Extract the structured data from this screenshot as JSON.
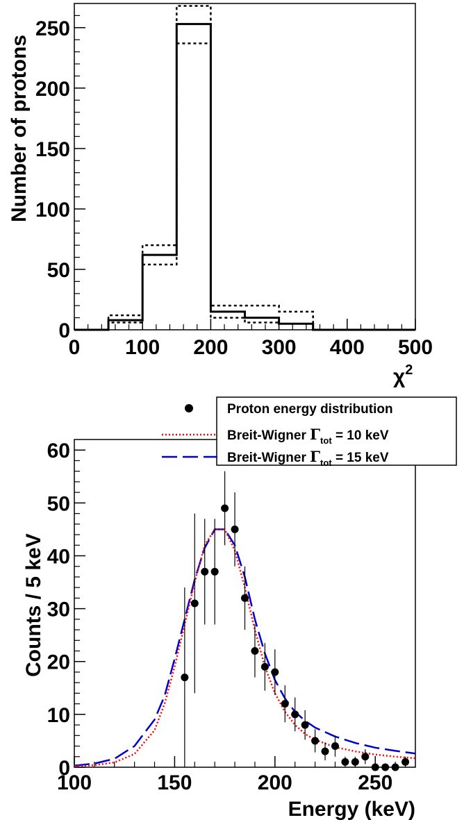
{
  "chart_data": [
    {
      "type": "histogram",
      "xlabel": "χ",
      "xlabel_sup": "2",
      "ylabel": "Number of protons",
      "xlim": [
        0,
        500
      ],
      "ylim": [
        0,
        270
      ],
      "x_ticks": [
        "0",
        "100",
        "200",
        "300",
        "400",
        "500"
      ],
      "y_ticks": [
        "0",
        "50",
        "100",
        "150",
        "200",
        "250"
      ],
      "bin_width": 50,
      "bin_edges": [
        0,
        50,
        100,
        150,
        200,
        250,
        300,
        350,
        400,
        450,
        500
      ],
      "series": [
        {
          "style": "solid",
          "values": [
            0,
            8,
            62,
            253,
            15,
            10,
            5,
            0,
            0,
            0
          ]
        },
        {
          "style": "dotted-upper",
          "values": [
            0,
            12,
            70,
            268,
            20,
            20,
            15,
            0,
            0,
            0
          ]
        },
        {
          "style": "dotted-lower",
          "values": [
            0,
            6,
            54,
            237,
            10,
            6,
            5,
            0,
            0,
            0
          ]
        }
      ]
    },
    {
      "type": "scatter",
      "xlabel": "Energy (keV)",
      "ylabel": "Counts / 5 keV",
      "xlim": [
        100,
        270
      ],
      "ylim": [
        0,
        62
      ],
      "x_ticks": [
        "100",
        "150",
        "200",
        "250"
      ],
      "y_ticks": [
        "0",
        "10",
        "20",
        "30",
        "40",
        "50",
        "60"
      ],
      "legend_position": "top-right",
      "legend": [
        {
          "label": "Proton energy distribution",
          "marker": "dot",
          "color": "#000000"
        },
        {
          "label": "Breit-Wigner",
          "gamma": "Γ",
          "sub": "tot",
          "value": "= 10 keV",
          "style": "dotted",
          "color": "#ff0000"
        },
        {
          "label": "Breit-Wigner",
          "gamma": "Γ",
          "sub": "tot",
          "value": "= 15 keV",
          "style": "dashed",
          "color": "#0000cc"
        }
      ],
      "points": {
        "x": [
          155,
          160,
          165,
          170,
          175,
          180,
          185,
          190,
          195,
          200,
          205,
          210,
          215,
          220,
          225,
          230,
          235,
          240,
          245,
          250,
          255,
          260,
          265
        ],
        "y": [
          17,
          31,
          37,
          37,
          49,
          45,
          32,
          22,
          19,
          18,
          12,
          10,
          8,
          5,
          3,
          4,
          1,
          1,
          2,
          0,
          0,
          0,
          1
        ],
        "err": [
          17,
          17,
          10,
          10,
          7,
          7,
          6,
          5,
          4.5,
          4.3,
          3.5,
          3.2,
          2.8,
          2.2,
          1.7,
          2,
          1,
          1,
          1.4,
          0,
          0,
          0,
          1
        ]
      },
      "curves": [
        {
          "name": "Breit-Wigner 10 keV",
          "color": "#ff0000",
          "style": "dotted",
          "x": [
            100,
            110,
            120,
            130,
            140,
            145,
            150,
            155,
            160,
            165,
            170,
            175,
            180,
            185,
            190,
            195,
            200,
            205,
            210,
            215,
            220,
            230,
            240,
            250,
            260,
            270
          ],
          "y": [
            0.2,
            0.4,
            0.9,
            2.5,
            7,
            12,
            19,
            27,
            35,
            42,
            45,
            45,
            41,
            34,
            26,
            19,
            14,
            10.5,
            8,
            6.3,
            5.2,
            3.8,
            3,
            2.4,
            2,
            1.7
          ]
        },
        {
          "name": "Breit-Wigner 15 keV",
          "color": "#0000cc",
          "style": "dashed",
          "x": [
            100,
            110,
            120,
            130,
            140,
            145,
            150,
            155,
            160,
            165,
            170,
            175,
            180,
            185,
            190,
            195,
            200,
            205,
            210,
            215,
            220,
            230,
            240,
            250,
            260,
            270
          ],
          "y": [
            0.3,
            0.7,
            1.6,
            4,
            9,
            13.5,
            20.5,
            28,
            35.5,
            41.5,
            45,
            45,
            42,
            36,
            28,
            21.5,
            16.5,
            13,
            10.5,
            8.8,
            7.5,
            5.8,
            4.6,
            3.7,
            3.1,
            2.6
          ]
        }
      ]
    }
  ]
}
